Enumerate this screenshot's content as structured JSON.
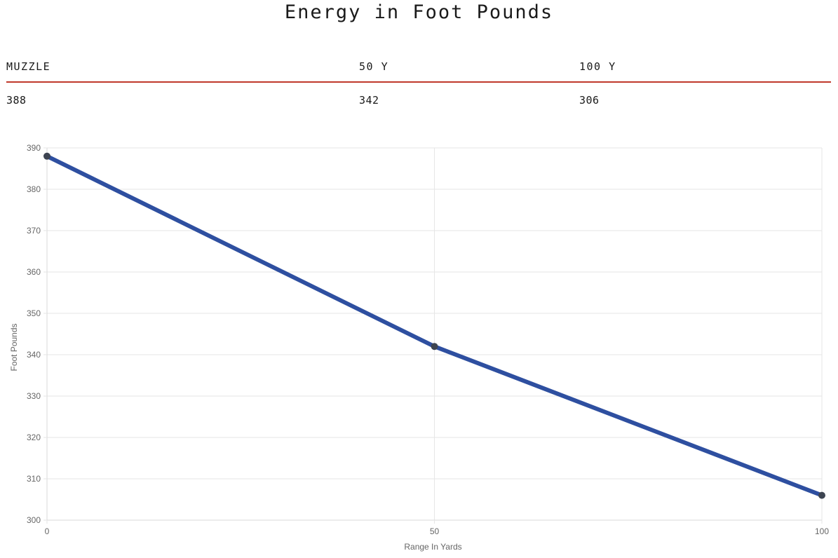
{
  "title": "Energy in Foot Pounds",
  "table": {
    "headers": [
      "MUZZLE",
      "50 Y",
      "100 Y"
    ],
    "values": [
      "388",
      "342",
      "306"
    ]
  },
  "colors": {
    "line": "#2e4fa0",
    "point": "#3d4451",
    "grid": "#e6e6e6",
    "table_rule": "#c0392b"
  },
  "chart_data": {
    "type": "line",
    "x": [
      0,
      50,
      100
    ],
    "series": [
      {
        "values": [
          388,
          342,
          306
        ]
      }
    ],
    "xlabel": "Range In Yards",
    "ylabel": "Foot Pounds",
    "xlim": [
      0,
      100
    ],
    "ylim": [
      300,
      390
    ],
    "xticks": [
      0,
      50,
      100
    ],
    "yticks": [
      300,
      310,
      320,
      330,
      340,
      350,
      360,
      370,
      380,
      390
    ],
    "grid": true,
    "legend": "none"
  }
}
